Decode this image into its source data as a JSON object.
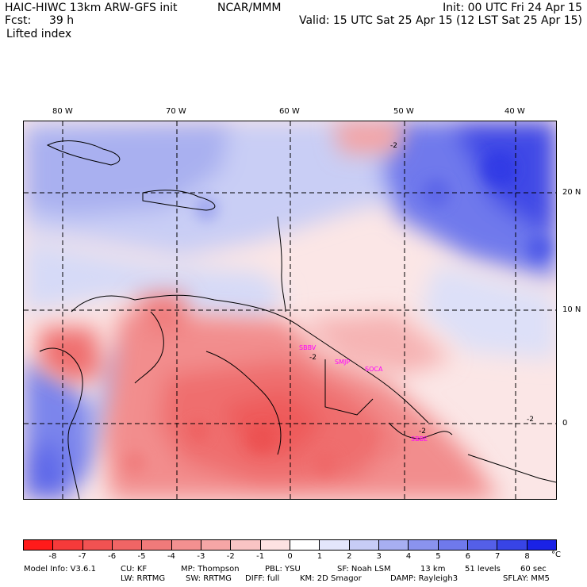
{
  "header": {
    "model": "HAIC-HIWC 13km ARW-GFS init",
    "org": "NCAR/MMM",
    "fcst_label": "Fcst:",
    "fcst_value": "39 h",
    "init": "Init: 00 UTC Fri 24 Apr 15",
    "valid": "Valid: 15 UTC Sat 25 Apr 15 (12 LST Sat 25 Apr 15)",
    "field": "Lifted index"
  },
  "longitudes": [
    "80 W",
    "70 W",
    "60 W",
    "50 W",
    "40 W"
  ],
  "latitudes": [
    "20 N",
    "10 N",
    "0"
  ],
  "cities": [
    "SBBV",
    "SMJP",
    "SOCA",
    "SBBE"
  ],
  "contour_labels": [
    "-2",
    "-2",
    "-2",
    "-2"
  ],
  "colorbar": {
    "labels": [
      "-8",
      "-7",
      "-6",
      "-5",
      "-4",
      "-3",
      "-2",
      "-1",
      "0",
      "1",
      "2",
      "3",
      "4",
      "5",
      "6",
      "7",
      "8"
    ],
    "unit": "°C",
    "colors": [
      "#ff1a1a",
      "#f63a3a",
      "#f15252",
      "#f06565",
      "#f07a7a",
      "#f39090",
      "#f6a6a6",
      "#f9c4c4",
      "#fde2e2",
      "#ffffff",
      "#e3e6fb",
      "#c7ccf6",
      "#a7aff2",
      "#8a93ee",
      "#6f79ec",
      "#545fe8",
      "#3844e6",
      "#1a22e6"
    ]
  },
  "footer": {
    "line1": [
      "Model Info: V3.6.1",
      "CU: KF",
      "MP: Thompson",
      "PBL: YSU",
      "SF: Noah LSM",
      "13 km",
      "51 levels",
      "60 sec"
    ],
    "line2": [
      "LW: RRTMG",
      "SW: RRTMG",
      "DIFF: full",
      "KM: 2D Smagor",
      "DAMP: Rayleigh3",
      "SFLAY: MM5"
    ]
  }
}
